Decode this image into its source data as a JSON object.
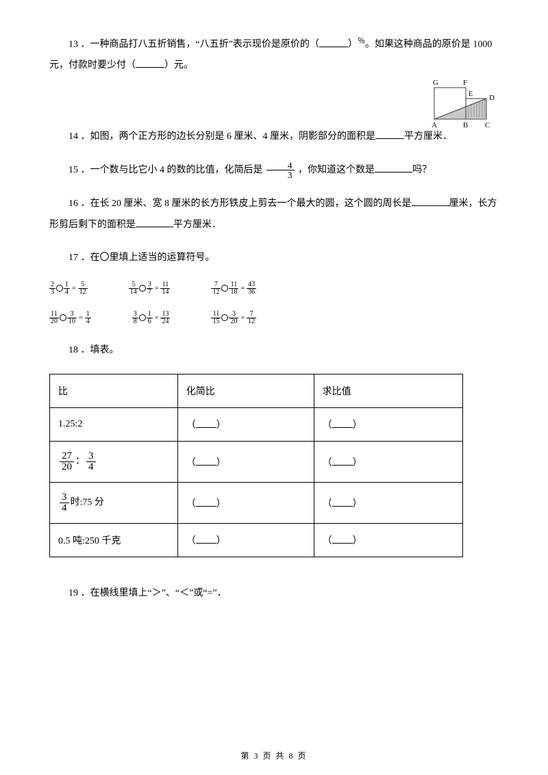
{
  "q13": {
    "num": "13",
    "text_a": "．一种商品打八五折销售，“八五折”表示现价是原价的（",
    "text_b": "）",
    "percent": "％",
    "text_c": "。如果这种商品的原价是 1000 元，付款时要少付（",
    "text_d": "）元。"
  },
  "q14": {
    "num": "14",
    "text_a": "．如图，两个正方形的边长分别是 6 厘米、4 厘米，阴影部分的面积是",
    "text_b": "平方厘米．",
    "fig": {
      "labels": {
        "G": "G",
        "F": "F",
        "E": "E",
        "D": "D",
        "A": "A",
        "B": "B",
        "C": "C"
      },
      "big_side": 46,
      "small_side": 30,
      "stroke": "#3a3a3a",
      "fill": "#c9c9c9"
    }
  },
  "q15": {
    "num": "15",
    "text_a": "．一个数与比它小 4 的数的比值，化简后是 ",
    "frac": {
      "n": "4",
      "d": "3"
    },
    "text_b": "，你知道这个数是",
    "text_c": "吗？"
  },
  "q16": {
    "num": "16",
    "text_a": "．在长 20 厘米、宽 8 厘米的长方形铁皮上剪去一个最大的圆，这个圆的周长是",
    "text_b": "厘米，长方形剪后剩下的面积是",
    "text_c": "平方厘米．"
  },
  "q17": {
    "num": "17",
    "text": "．在〇里填上适当的运算符号。",
    "row1": [
      {
        "a": {
          "n": "2",
          "d": "3"
        },
        "b": {
          "n": "1",
          "d": "4"
        },
        "eq": "=",
        "r": {
          "n": "5",
          "d": "12"
        }
      },
      {
        "a": {
          "n": "5",
          "d": "14"
        },
        "b": {
          "n": "3",
          "d": "7"
        },
        "eq": "=",
        "r": {
          "n": "11",
          "d": "14"
        }
      },
      {
        "a": {
          "n": "7",
          "d": "12"
        },
        "b": {
          "n": "11",
          "d": "18"
        },
        "eq": "=",
        "r": {
          "n": "43",
          "d": "36"
        }
      }
    ],
    "row2": [
      {
        "a": {
          "n": "11",
          "d": "20"
        },
        "b": {
          "n": "3",
          "d": "10"
        },
        "eq": "=",
        "r": {
          "n": "1",
          "d": "4"
        }
      },
      {
        "a": {
          "n": "3",
          "d": "8"
        },
        "b": {
          "n": "1",
          "d": "6"
        },
        "eq": "=",
        "r": {
          "n": "13",
          "d": "24"
        }
      },
      {
        "a": {
          "n": "11",
          "d": "15"
        },
        "b": {
          "n": "3",
          "d": "20"
        },
        "eq": "=",
        "r": {
          "n": "7",
          "d": "12"
        }
      }
    ]
  },
  "q18": {
    "num": "18",
    "text": "．填表。",
    "headers": [
      "比",
      "化简比",
      "求比值"
    ],
    "rows": [
      {
        "label": "1.25:2",
        "is_frac": false
      },
      {
        "label_frac1": {
          "n": "27",
          "d": "20"
        },
        "sep": "：",
        "label_frac2": {
          "n": "3",
          "d": "4"
        },
        "is_frac": true
      },
      {
        "label_frac1": {
          "n": "3",
          "d": "4"
        },
        "suffix": "时:75 分",
        "is_frac_single": true
      },
      {
        "label": "0.5 吨:250 千克",
        "is_frac": false
      }
    ]
  },
  "q19": {
    "num": "19",
    "text": "．在横线里填上“＞”、“＜”或“=”．"
  },
  "footer": {
    "prefix": "第 ",
    "page": "3",
    "mid": " 页 共 ",
    "total": "8",
    "suffix": " 页"
  }
}
